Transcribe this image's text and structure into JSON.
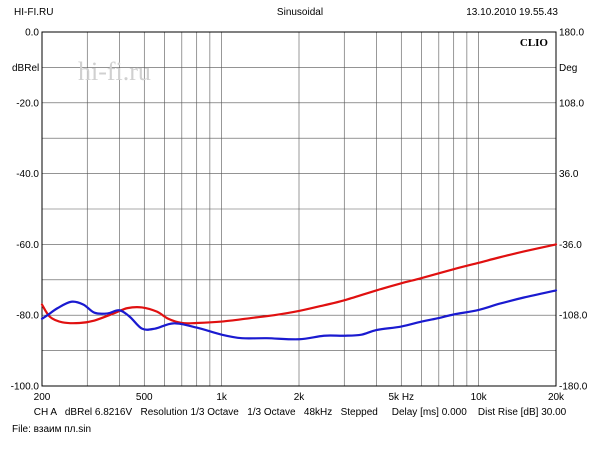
{
  "header": {
    "left": "HI-FI.RU",
    "center": "Sinusoidal",
    "right": "13.10.2010 19.55.43"
  },
  "brand": {
    "clio": "CLIO",
    "watermark": "hi-fi.ru"
  },
  "footer": {
    "settings": "CH A   dBRel 6.8216V   Resolution 1/3 Octave   1/3 Octave   48kHz   Stepped     Delay [ms] 0.000    Dist Rise [dB] 30.00",
    "file": "File: взаим пл.sin"
  },
  "colors": {
    "red": "#e01010",
    "blue": "#1a1ad0",
    "grid": "#000000"
  },
  "chart_data": {
    "type": "line",
    "xlabel": "",
    "ylabel": "dBRel",
    "y2label": "Deg",
    "xscale": "log",
    "xlim": [
      200,
      20000
    ],
    "ylim": [
      -100,
      0
    ],
    "y2lim": [
      -180,
      180
    ],
    "grid": true,
    "x_tick_labels": [
      {
        "value": 200,
        "label": "200"
      },
      {
        "value": 500,
        "label": "500"
      },
      {
        "value": 1000,
        "label": "1k"
      },
      {
        "value": 2000,
        "label": "2k"
      },
      {
        "value": 5000,
        "label": "5k Hz"
      },
      {
        "value": 10000,
        "label": "10k"
      },
      {
        "value": 20000,
        "label": "20k"
      }
    ],
    "y_tick_labels": [
      {
        "value": 0,
        "label": "0.0"
      },
      {
        "value": -20,
        "label": "-20.0"
      },
      {
        "value": -40,
        "label": "-40.0"
      },
      {
        "value": -60,
        "label": "-60.0"
      },
      {
        "value": -80,
        "label": "-80.0"
      },
      {
        "value": -100,
        "label": "-100.0"
      }
    ],
    "y2_tick_labels": [
      {
        "value": 180,
        "label": "180.0"
      },
      {
        "value": 108,
        "label": "108.0"
      },
      {
        "value": 36,
        "label": "36.0"
      },
      {
        "value": -36,
        "label": "-36.0"
      },
      {
        "value": -108,
        "label": "-108.0"
      },
      {
        "value": -180,
        "label": "-180.0"
      }
    ],
    "series": [
      {
        "color": "#e01010",
        "x": [
          200,
          215,
          240,
          280,
          320,
          380,
          430,
          490,
          560,
          620,
          700,
          800,
          1000,
          1300,
          1600,
          2000,
          2500,
          3000,
          4000,
          5000,
          6000,
          8000,
          10000,
          12000,
          15000,
          20000
        ],
        "y": [
          -77,
          -80.5,
          -82,
          -82.2,
          -81.5,
          -79.5,
          -78,
          -77.8,
          -79,
          -81,
          -82.2,
          -82.2,
          -81.8,
          -80.8,
          -80,
          -78.8,
          -77.2,
          -75.8,
          -73,
          -71,
          -69.5,
          -67,
          -65.2,
          -63.7,
          -62,
          -60
        ]
      },
      {
        "color": "#1a1ad0",
        "x": [
          200,
          210,
          230,
          260,
          290,
          320,
          360,
          400,
          440,
          490,
          550,
          650,
          800,
          1000,
          1200,
          1500,
          2000,
          2500,
          3000,
          3500,
          4000,
          5000,
          6000,
          7000,
          8000,
          10000,
          12000,
          15000,
          20000
        ],
        "y": [
          -81,
          -80,
          -78,
          -76.2,
          -77,
          -79.3,
          -79.5,
          -78.6,
          -80.5,
          -83.8,
          -83.8,
          -82.3,
          -83.5,
          -85.5,
          -86.5,
          -86.5,
          -86.8,
          -85.8,
          -85.8,
          -85.5,
          -84.2,
          -83.2,
          -81.8,
          -80.8,
          -79.8,
          -78.5,
          -76.8,
          -75,
          -73
        ]
      }
    ]
  }
}
